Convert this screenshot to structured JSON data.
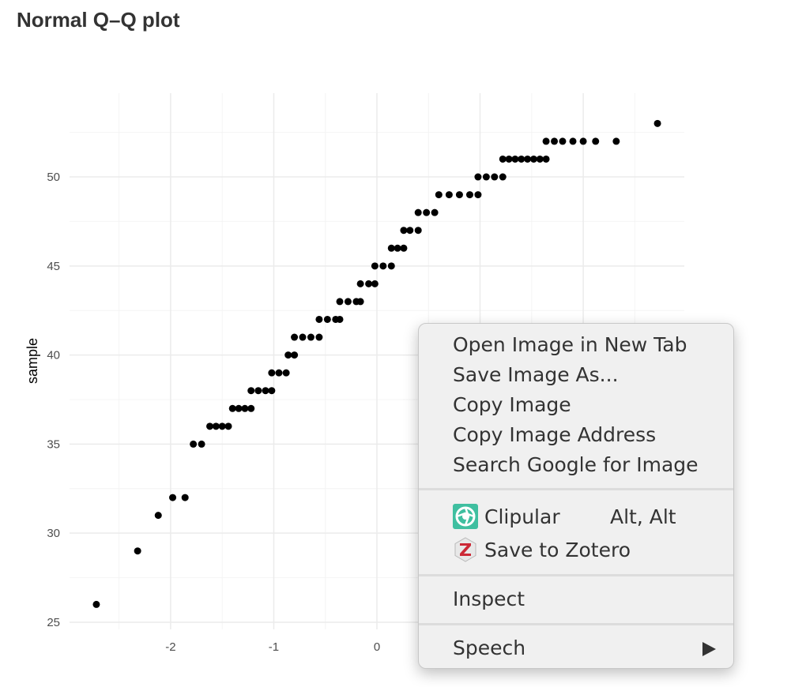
{
  "page": {
    "title": "Normal Q–Q plot"
  },
  "chart_data": {
    "type": "scatter",
    "title": "Normal Q–Q plot",
    "xlabel": "",
    "ylabel": "sample",
    "x_ticks": [
      "-2",
      "-1",
      "0"
    ],
    "y_ticks": [
      "25",
      "30",
      "35",
      "40",
      "45",
      "50"
    ],
    "xlim": [
      -2.98,
      2.98
    ],
    "ylim": [
      24.6,
      54.7
    ],
    "grid": true,
    "series": [
      {
        "points": [
          [
            -2.72,
            26
          ],
          [
            -2.32,
            29
          ],
          [
            -2.12,
            31
          ],
          [
            -1.98,
            32
          ],
          [
            -1.86,
            32
          ],
          [
            -1.78,
            35
          ],
          [
            -1.7,
            35
          ],
          [
            -1.62,
            36
          ],
          [
            -1.56,
            36
          ],
          [
            -1.5,
            36
          ],
          [
            -1.44,
            36
          ],
          [
            -1.4,
            37
          ],
          [
            -1.34,
            37
          ],
          [
            -1.28,
            37
          ],
          [
            -1.22,
            37
          ],
          [
            -1.22,
            38
          ],
          [
            -1.15,
            38
          ],
          [
            -1.08,
            38
          ],
          [
            -1.02,
            38
          ],
          [
            -1.02,
            39
          ],
          [
            -0.95,
            39
          ],
          [
            -0.88,
            39
          ],
          [
            -0.86,
            40
          ],
          [
            -0.8,
            40
          ],
          [
            -0.8,
            41
          ],
          [
            -0.72,
            41
          ],
          [
            -0.64,
            41
          ],
          [
            -0.56,
            41
          ],
          [
            -0.56,
            42
          ],
          [
            -0.48,
            42
          ],
          [
            -0.4,
            42
          ],
          [
            -0.36,
            42
          ],
          [
            -0.36,
            43
          ],
          [
            -0.28,
            43
          ],
          [
            -0.2,
            43
          ],
          [
            -0.16,
            43
          ],
          [
            -0.16,
            44
          ],
          [
            -0.08,
            44
          ],
          [
            -0.02,
            44
          ],
          [
            -0.02,
            45
          ],
          [
            0.06,
            45
          ],
          [
            0.14,
            45
          ],
          [
            0.14,
            46
          ],
          [
            0.2,
            46
          ],
          [
            0.26,
            46
          ],
          [
            0.26,
            47
          ],
          [
            0.32,
            47
          ],
          [
            0.4,
            47
          ],
          [
            0.4,
            48
          ],
          [
            0.48,
            48
          ],
          [
            0.56,
            48
          ],
          [
            0.6,
            49
          ],
          [
            0.7,
            49
          ],
          [
            0.8,
            49
          ],
          [
            0.9,
            49
          ],
          [
            0.98,
            49
          ],
          [
            0.98,
            50
          ],
          [
            1.06,
            50
          ],
          [
            1.14,
            50
          ],
          [
            1.22,
            50
          ],
          [
            1.22,
            51
          ],
          [
            1.28,
            51
          ],
          [
            1.34,
            51
          ],
          [
            1.4,
            51
          ],
          [
            1.46,
            51
          ],
          [
            1.52,
            51
          ],
          [
            1.58,
            51
          ],
          [
            1.64,
            51
          ],
          [
            1.64,
            52
          ],
          [
            1.72,
            52
          ],
          [
            1.8,
            52
          ],
          [
            1.9,
            52
          ],
          [
            2.0,
            52
          ],
          [
            2.12,
            52
          ],
          [
            2.32,
            52
          ],
          [
            2.72,
            53
          ]
        ]
      }
    ]
  },
  "context_menu": {
    "items": [
      {
        "label": "Open Image in New Tab"
      },
      {
        "label": "Save Image As..."
      },
      {
        "label": "Copy Image"
      },
      {
        "label": "Copy Image Address"
      },
      {
        "label": "Search Google for Image"
      }
    ],
    "extensions": [
      {
        "label": "Clipular",
        "shortcut": "Alt, Alt",
        "icon": "clipular-icon"
      },
      {
        "label": "Save to Zotero",
        "icon": "zotero-icon"
      }
    ],
    "inspect": {
      "label": "Inspect"
    },
    "speech": {
      "label": "Speech",
      "icon": "submenu-arrow-icon"
    }
  },
  "colors": {
    "menu_bg": "#f0f0f0",
    "grid": "#ebebeb",
    "point": "#000000",
    "zotero_red": "#cc2936",
    "clipular_teal": "#3fbfa0"
  }
}
